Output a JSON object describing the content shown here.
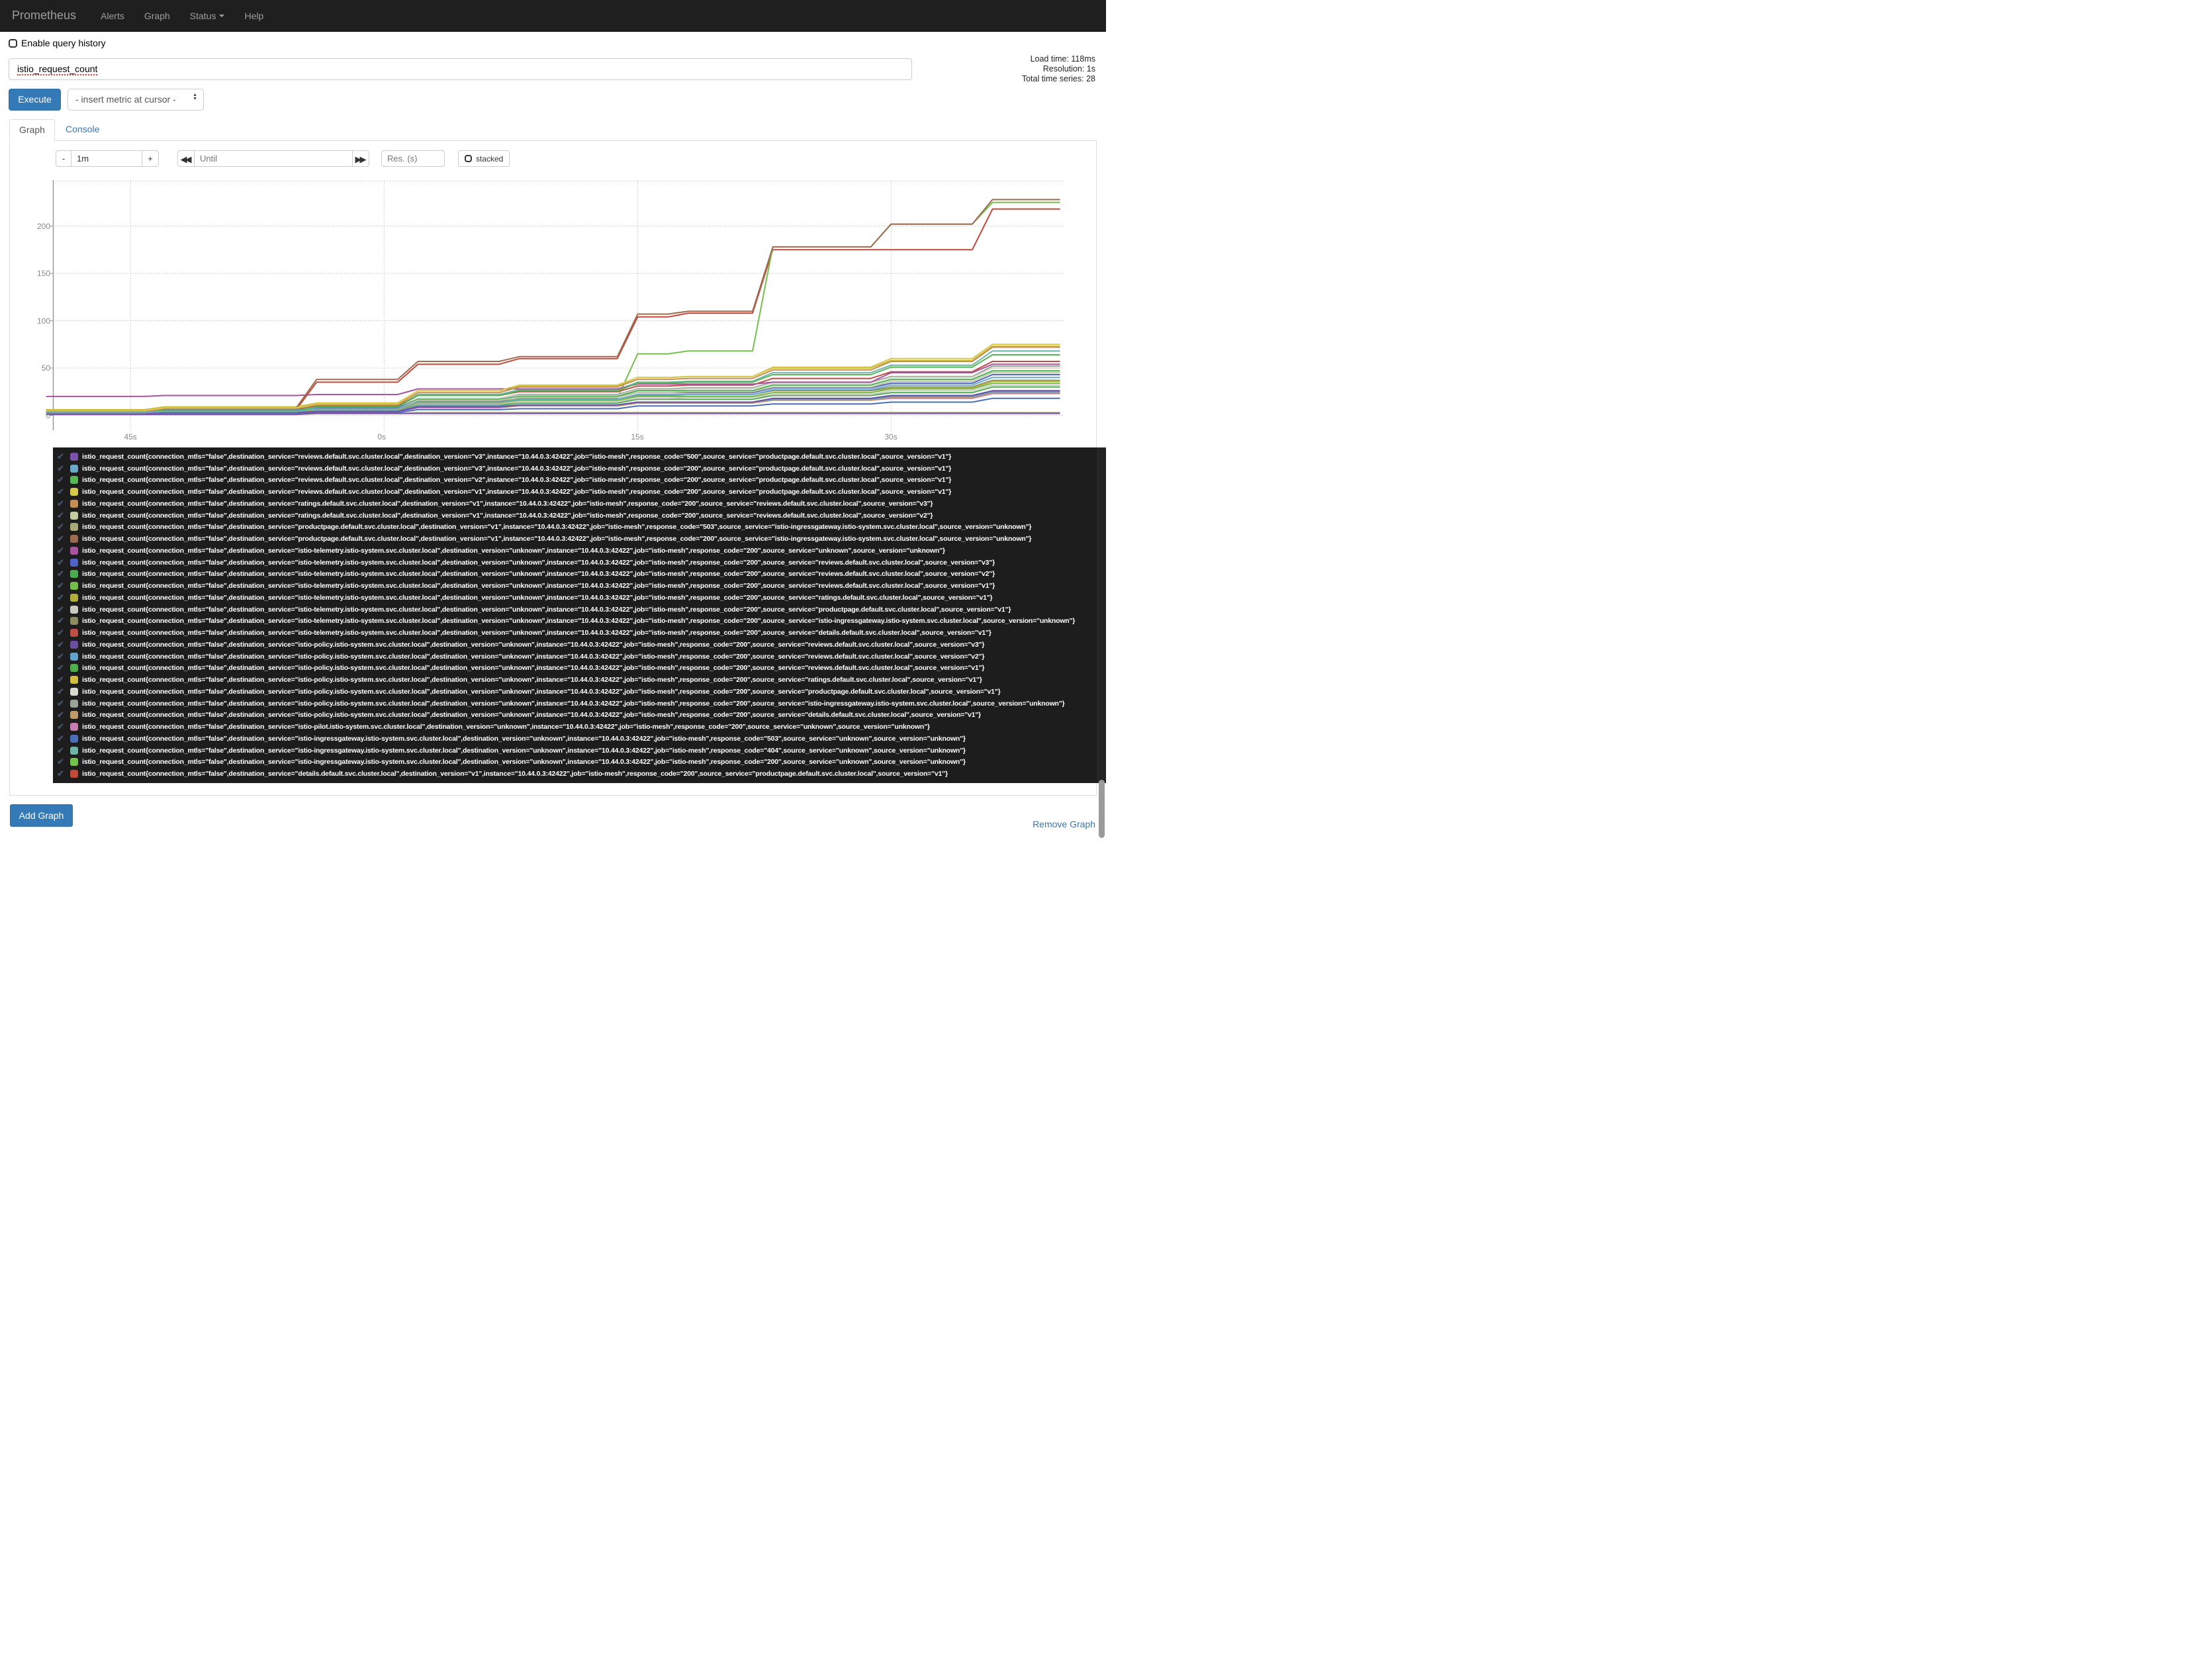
{
  "navbar": {
    "brand": "Prometheus",
    "items": [
      {
        "label": "Alerts",
        "caret": false
      },
      {
        "label": "Graph",
        "caret": false
      },
      {
        "label": "Status",
        "caret": true
      },
      {
        "label": "Help",
        "caret": false
      }
    ]
  },
  "query": {
    "history_label": "Enable query history",
    "expression": "istio_request_count",
    "execute_label": "Execute",
    "metric_select_label": "- insert metric at cursor -"
  },
  "stats": {
    "load_time": "Load time: 118ms",
    "resolution": "Resolution: 1s",
    "total_series": "Total time series: 28"
  },
  "tabs": {
    "graph": "Graph",
    "console": "Console"
  },
  "controls": {
    "minus_label": "-",
    "range_value": "1m",
    "plus_label": "+",
    "until_placeholder": "Until",
    "res_placeholder": "Res. (s)",
    "stacked_label": "stacked"
  },
  "footer": {
    "remove_graph": "Remove Graph",
    "add_graph": "Add Graph"
  },
  "chart_data": {
    "type": "line",
    "title": "",
    "xlabel": "",
    "ylabel": "",
    "grid": true,
    "legend_position": "bottom",
    "x_unit": "seconds (time-of-minute ticks)",
    "x_range": [
      -19.6,
      40.25
    ],
    "y_range": [
      -15,
      250
    ],
    "x_ticks": [
      {
        "t": -15,
        "label": "45s"
      },
      {
        "t": 0,
        "label": "0s"
      },
      {
        "t": 15,
        "label": "15s"
      },
      {
        "t": 30,
        "label": "30s"
      }
    ],
    "y_ticks": [
      0,
      50,
      100,
      150,
      200
    ],
    "y_gridlines": [
      0,
      50,
      100,
      150,
      200,
      250
    ],
    "common_labels": {
      "metric": "istio_request_count",
      "connection_mtls": "false",
      "instance": "10.44.0.3:42422",
      "job": "istio-mesh"
    },
    "x_steps": [
      -20,
      -13,
      -4,
      2,
      8,
      15,
      18,
      23,
      30,
      36,
      40
    ],
    "series": [
      {
        "dest": "reviews.default.svc.cluster.local",
        "dv": "v3",
        "code": "500",
        "src": "productpage.default.svc.cluster.local",
        "sv": "v1",
        "color": "#7b52ab",
        "values": [
          1,
          1,
          2,
          2,
          2,
          2,
          2,
          2,
          2,
          2,
          2
        ]
      },
      {
        "dest": "reviews.default.svc.cluster.local",
        "dv": "v3",
        "code": "200",
        "src": "productpage.default.svc.cluster.local",
        "sv": "v1",
        "color": "#69a8c9",
        "values": [
          3,
          4,
          7,
          14,
          17,
          22,
          22,
          27,
          32,
          40,
          40
        ]
      },
      {
        "dest": "reviews.default.svc.cluster.local",
        "dv": "v2",
        "code": "200",
        "src": "productpage.default.svc.cluster.local",
        "sv": "v1",
        "color": "#57b757",
        "values": [
          3,
          5,
          9,
          21,
          26,
          34,
          35,
          43,
          51,
          64,
          64
        ]
      },
      {
        "dest": "reviews.default.svc.cluster.local",
        "dv": "v1",
        "code": "200",
        "src": "productpage.default.svc.cluster.local",
        "sv": "v1",
        "color": "#d6c84f",
        "values": [
          5,
          8,
          12,
          26,
          32,
          40,
          41,
          51,
          60,
          75,
          75
        ]
      },
      {
        "dest": "ratings.default.svc.cluster.local",
        "dv": "v1",
        "code": "200",
        "src": "reviews.default.svc.cluster.local",
        "sv": "v3",
        "color": "#c58f54",
        "values": [
          4,
          7,
          11,
          24,
          30,
          38,
          39,
          48,
          57,
          72,
          72
        ]
      },
      {
        "dest": "ratings.default.svc.cluster.local",
        "dv": "v1",
        "code": "200",
        "src": "reviews.default.svc.cluster.local",
        "sv": "v2",
        "color": "#c2cba2",
        "values": [
          3,
          5,
          7,
          16,
          19,
          24,
          25,
          30,
          36,
          45,
          45
        ]
      },
      {
        "dest": "productpage.default.svc.cluster.local",
        "dv": "v1",
        "code": "503",
        "src": "istio-ingressgateway.istio-system.svc.cluster.local",
        "sv": "unknown",
        "color": "#a8a878",
        "values": [
          1,
          1,
          2,
          3,
          3,
          3,
          3,
          3,
          3,
          3,
          3
        ]
      },
      {
        "dest": "productpage.default.svc.cluster.local",
        "dv": "v1",
        "code": "200",
        "src": "istio-ingressgateway.istio-system.svc.cluster.local",
        "sv": "unknown",
        "color": "#9c6b50",
        "values": [
          5,
          8,
          38,
          57,
          62,
          107,
          110,
          178,
          202,
          228,
          228
        ]
      },
      {
        "dest": "istio-telemetry.istio-system.svc.cluster.local",
        "dv": "unknown",
        "code": "200",
        "src": "unknown",
        "sv": "unknown",
        "color": "#a8549e",
        "values": [
          20,
          21,
          22,
          28,
          28,
          33,
          33,
          35,
          45,
          54,
          54
        ]
      },
      {
        "dest": "istio-telemetry.istio-system.svc.cluster.local",
        "dv": "unknown",
        "code": "200",
        "src": "reviews.default.svc.cluster.local",
        "sv": "v3",
        "color": "#4f63c4",
        "values": [
          4,
          6,
          8,
          16,
          19,
          24,
          24,
          29,
          34,
          43,
          43
        ]
      },
      {
        "dest": "istio-telemetry.istio-system.svc.cluster.local",
        "dv": "unknown",
        "code": "200",
        "src": "reviews.default.svc.cluster.local",
        "sv": "v2",
        "color": "#4cab50",
        "values": [
          4,
          6,
          8,
          17,
          20,
          26,
          26,
          32,
          38,
          47,
          47
        ]
      },
      {
        "dest": "istio-telemetry.istio-system.svc.cluster.local",
        "dv": "unknown",
        "code": "200",
        "src": "reviews.default.svc.cluster.local",
        "sv": "v1",
        "color": "#74bd4a",
        "values": [
          5,
          6,
          8,
          14,
          16,
          20,
          20,
          24,
          28,
          34,
          34
        ]
      },
      {
        "dest": "istio-telemetry.istio-system.svc.cluster.local",
        "dv": "unknown",
        "code": "200",
        "src": "ratings.default.svc.cluster.local",
        "sv": "v1",
        "color": "#b3ac3f",
        "values": [
          3,
          4,
          6,
          13,
          16,
          20,
          20,
          24,
          29,
          36,
          36
        ]
      },
      {
        "dest": "istio-telemetry.istio-system.svc.cluster.local",
        "dv": "unknown",
        "code": "200",
        "src": "productpage.default.svc.cluster.local",
        "sv": "v1",
        "color": "#c9c9c1",
        "values": [
          4,
          5,
          7,
          12,
          15,
          18,
          19,
          22,
          26,
          32,
          32
        ]
      },
      {
        "dest": "istio-telemetry.istio-system.svc.cluster.local",
        "dv": "unknown",
        "code": "200",
        "src": "istio-ingressgateway.istio-system.svc.cluster.local",
        "sv": "unknown",
        "color": "#8c8c60",
        "values": [
          5,
          6,
          8,
          15,
          17,
          21,
          22,
          26,
          30,
          37,
          37
        ]
      },
      {
        "dest": "istio-telemetry.istio-system.svc.cluster.local",
        "dv": "unknown",
        "code": "200",
        "src": "details.default.svc.cluster.local",
        "sv": "v1",
        "color": "#bf4f45",
        "values": [
          5,
          7,
          10,
          21,
          25,
          31,
          32,
          39,
          46,
          57,
          57
        ]
      },
      {
        "dest": "istio-policy.istio-system.svc.cluster.local",
        "dv": "unknown",
        "code": "200",
        "src": "reviews.default.svc.cluster.local",
        "sv": "v3",
        "color": "#6a4fa0",
        "values": [
          2,
          3,
          4,
          9,
          11,
          14,
          14,
          18,
          21,
          26,
          26
        ]
      },
      {
        "dest": "istio-policy.istio-system.svc.cluster.local",
        "dv": "unknown",
        "code": "200",
        "src": "reviews.default.svc.cluster.local",
        "sv": "v2",
        "color": "#63a0cc",
        "values": [
          3,
          4,
          5,
          10,
          11,
          14,
          14,
          17,
          20,
          25,
          25
        ]
      },
      {
        "dest": "istio-policy.istio-system.svc.cluster.local",
        "dv": "unknown",
        "code": "200",
        "src": "reviews.default.svc.cluster.local",
        "sv": "v1",
        "color": "#4cae4c",
        "values": [
          3,
          4,
          6,
          11,
          13,
          17,
          17,
          21,
          24,
          30,
          30
        ]
      },
      {
        "dest": "istio-policy.istio-system.svc.cluster.local",
        "dv": "unknown",
        "code": "200",
        "src": "ratings.default.svc.cluster.local",
        "sv": "v1",
        "color": "#d0bf3e",
        "values": [
          6,
          9,
          13,
          26,
          31,
          40,
          41,
          50,
          58,
          73,
          73
        ]
      },
      {
        "dest": "istio-policy.istio-system.svc.cluster.local",
        "dv": "unknown",
        "code": "200",
        "src": "productpage.default.svc.cluster.local",
        "sv": "v1",
        "color": "#d9d9cf",
        "values": [
          4,
          6,
          9,
          18,
          21,
          27,
          28,
          34,
          40,
          50,
          50
        ]
      },
      {
        "dest": "istio-policy.istio-system.svc.cluster.local",
        "dv": "unknown",
        "code": "200",
        "src": "istio-ingressgateway.istio-system.svc.cluster.local",
        "sv": "unknown",
        "color": "#9aa398",
        "values": [
          4,
          6,
          9,
          18,
          22,
          28,
          29,
          35,
          41,
          52,
          52
        ]
      },
      {
        "dest": "istio-policy.istio-system.svc.cluster.local",
        "dv": "unknown",
        "code": "200",
        "src": "details.default.svc.cluster.local",
        "sv": "v1",
        "color": "#bd9a68",
        "values": [
          2,
          3,
          4,
          9,
          10,
          13,
          13,
          16,
          19,
          24,
          24
        ]
      },
      {
        "dest": "istio-pilot.istio-system.svc.cluster.local",
        "dv": "unknown",
        "code": "200",
        "src": "unknown",
        "sv": "unknown",
        "color": "#c77bb0",
        "values": [
          2,
          3,
          4,
          8,
          10,
          13,
          13,
          16,
          18,
          23,
          23
        ]
      },
      {
        "dest": "istio-ingressgateway.istio-system.svc.cluster.local",
        "dv": "unknown",
        "code": "503",
        "src": "unknown",
        "sv": "unknown",
        "color": "#4a6fb8",
        "values": [
          1,
          2,
          3,
          6,
          7,
          10,
          10,
          12,
          14,
          18,
          18
        ]
      },
      {
        "dest": "istio-ingressgateway.istio-system.svc.cluster.local",
        "dv": "unknown",
        "code": "404",
        "src": "unknown",
        "sv": "unknown",
        "color": "#6fb3a6",
        "values": [
          2,
          5,
          9,
          22,
          27,
          35,
          36,
          45,
          53,
          68,
          68
        ]
      },
      {
        "dest": "istio-ingressgateway.istio-system.svc.cluster.local",
        "dv": "unknown",
        "code": "200",
        "src": "unknown",
        "sv": "unknown",
        "color": "#74c04c",
        "values": [
          2,
          3,
          5,
          12,
          18,
          65,
          68,
          178,
          202,
          225,
          225
        ]
      },
      {
        "dest": "details.default.svc.cluster.local",
        "dv": "v1",
        "code": "200",
        "src": "productpage.default.svc.cluster.local",
        "sv": "v1",
        "color": "#c4493a",
        "values": [
          4,
          6,
          35,
          54,
          60,
          104,
          108,
          175,
          175,
          218,
          218
        ]
      }
    ]
  }
}
